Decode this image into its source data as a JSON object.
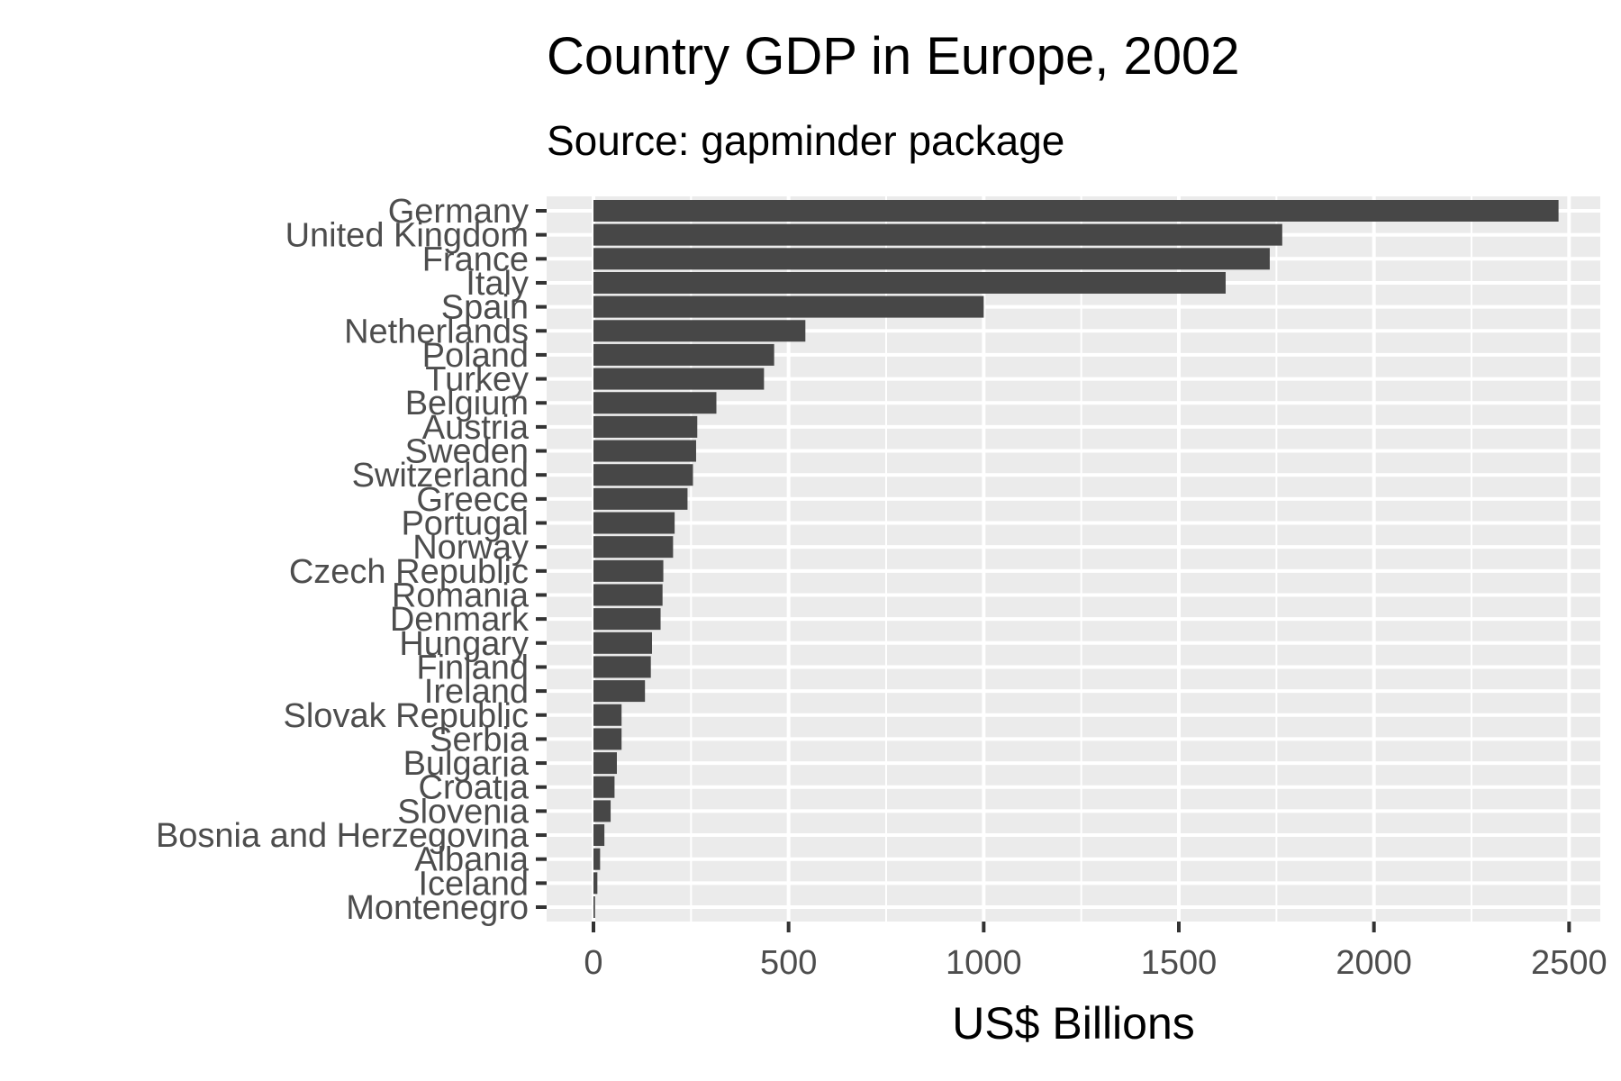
{
  "chart_data": {
    "type": "bar",
    "orientation": "horizontal",
    "title": "Country GDP in Europe, 2002",
    "subtitle": "Source: gapminder package",
    "xlabel": "US$ Billions",
    "ylabel": "",
    "xlim": [
      -120,
      2580
    ],
    "xticks": [
      0,
      500,
      1000,
      1500,
      2000,
      2500
    ],
    "grid": true,
    "legend": "none",
    "colors": {
      "bar": "#474747",
      "panel": "#ebebeb",
      "grid": "#ffffff"
    },
    "categories": [
      "Germany",
      "United Kingdom",
      "France",
      "Italy",
      "Spain",
      "Netherlands",
      "Poland",
      "Turkey",
      "Belgium",
      "Austria",
      "Sweden",
      "Switzerland",
      "Greece",
      "Portugal",
      "Norway",
      "Czech Republic",
      "Romania",
      "Denmark",
      "Hungary",
      "Finland",
      "Ireland",
      "Slovak Republic",
      "Serbia",
      "Bulgaria",
      "Croatia",
      "Slovenia",
      "Bosnia and Herzegovina",
      "Albania",
      "Iceland",
      "Montenegro"
    ],
    "values": [
      2473,
      1765,
      1733,
      1620,
      1000,
      543,
      463,
      437,
      315,
      266,
      263,
      255,
      241,
      208,
      204,
      179,
      177,
      172,
      150,
      147,
      132,
      72,
      72,
      60,
      54,
      44,
      28,
      17,
      10,
      4
    ]
  }
}
